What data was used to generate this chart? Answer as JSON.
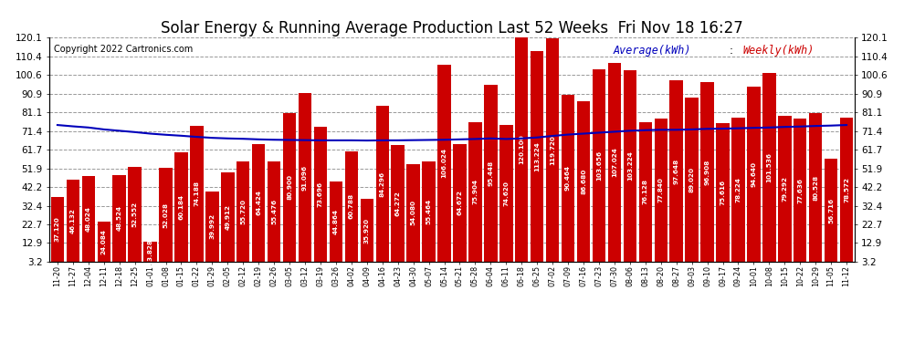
{
  "title": "Solar Energy & Running Average Production Last 52 Weeks  Fri Nov 18 16:27",
  "copyright": "Copyright 2022 Cartronics.com",
  "legend_avg": "Average(kWh)",
  "legend_weekly": "Weekly(kWh)",
  "categories": [
    "11-20",
    "11-27",
    "12-04",
    "12-11",
    "12-18",
    "12-25",
    "01-01",
    "01-08",
    "01-15",
    "01-22",
    "01-29",
    "02-05",
    "02-12",
    "02-19",
    "02-26",
    "03-05",
    "03-12",
    "03-19",
    "03-26",
    "04-02",
    "04-09",
    "04-16",
    "04-23",
    "04-30",
    "05-07",
    "05-14",
    "05-21",
    "05-28",
    "06-04",
    "06-11",
    "06-18",
    "06-25",
    "07-02",
    "07-09",
    "07-16",
    "07-23",
    "07-30",
    "08-06",
    "08-13",
    "08-20",
    "08-27",
    "09-03",
    "09-10",
    "09-17",
    "09-24",
    "10-01",
    "10-08",
    "10-15",
    "10-22",
    "10-29",
    "11-05",
    "11-12"
  ],
  "weekly_values": [
    37.12,
    46.132,
    48.024,
    24.084,
    48.524,
    52.552,
    13.828,
    52.028,
    60.184,
    74.188,
    39.992,
    49.912,
    55.72,
    64.424,
    55.476,
    80.9,
    91.096,
    73.696,
    44.864,
    60.788,
    35.92,
    84.296,
    64.272,
    54.08,
    55.464,
    106.024,
    64.672,
    75.904,
    95.448,
    74.62,
    120.1,
    113.224,
    119.72,
    90.464,
    86.68,
    103.656,
    107.024,
    103.224,
    76.128,
    77.84,
    97.648,
    89.02,
    96.908,
    75.616,
    78.224,
    94.64,
    101.536,
    79.292,
    77.636,
    80.528,
    56.716,
    78.572
  ],
  "running_avg": [
    74.5,
    73.8,
    73.2,
    72.2,
    71.5,
    70.8,
    70.0,
    69.4,
    68.9,
    68.3,
    67.8,
    67.5,
    67.3,
    67.0,
    66.8,
    66.7,
    66.6,
    66.5,
    66.5,
    66.5,
    66.4,
    66.5,
    66.5,
    66.6,
    66.7,
    66.8,
    67.0,
    67.2,
    67.5,
    67.2,
    67.5,
    68.0,
    68.8,
    69.5,
    70.0,
    70.5,
    71.0,
    71.5,
    71.8,
    72.0,
    72.0,
    72.2,
    72.5,
    72.6,
    72.8,
    73.0,
    73.2,
    73.5,
    73.7,
    74.0,
    74.2,
    74.5
  ],
  "bar_color": "#cc0000",
  "line_color": "#0000bb",
  "bar_label_color": "white",
  "background_color": "#ffffff",
  "grid_color": "#999999",
  "ylim": [
    3.2,
    120.1
  ],
  "yticks": [
    3.2,
    12.9,
    22.7,
    32.4,
    42.2,
    51.9,
    61.7,
    71.4,
    81.1,
    90.9,
    100.6,
    110.4,
    120.1
  ],
  "title_fontsize": 12,
  "copyright_fontsize": 7,
  "legend_fontsize": 8.5,
  "bar_label_fontsize": 5.2,
  "xtick_fontsize": 5.8,
  "ytick_fontsize": 7.5
}
